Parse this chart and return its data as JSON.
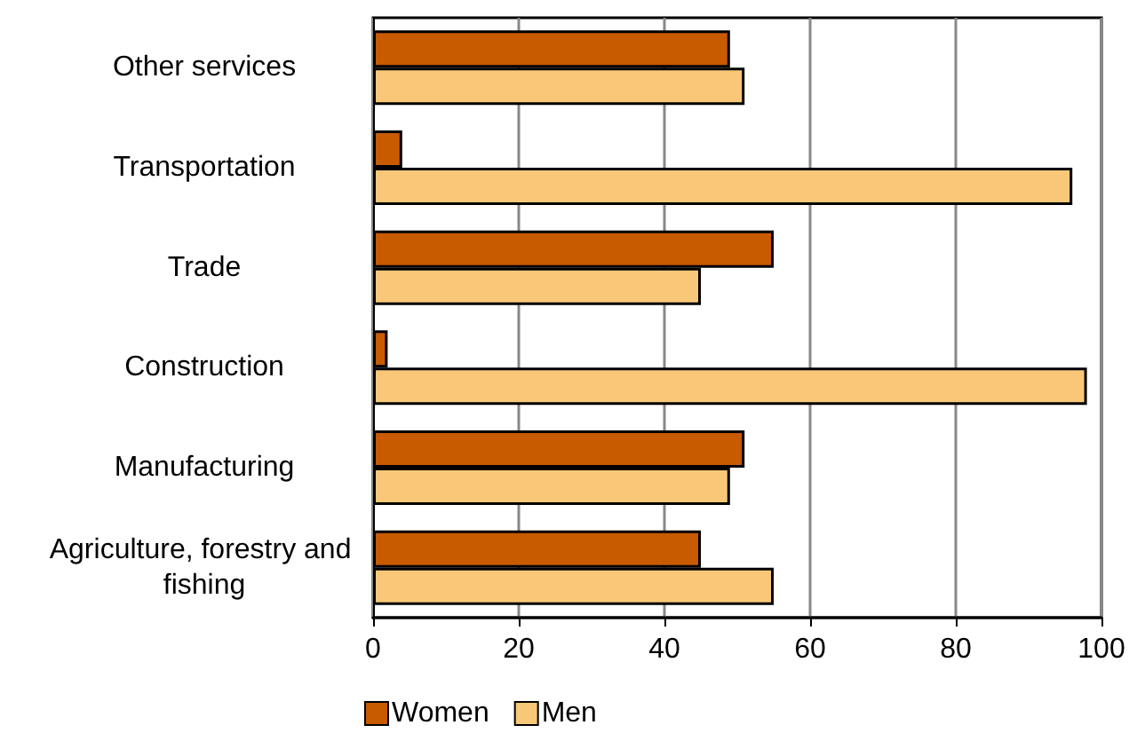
{
  "chart_data": {
    "type": "bar",
    "orientation": "horizontal",
    "categories": [
      "Other services",
      "Transportation",
      "Trade",
      "Construction",
      "Manufacturing",
      "Agriculture, forestry and fishing"
    ],
    "series": [
      {
        "name": "Women",
        "color": "#c85a00",
        "values": [
          49,
          4,
          55,
          2,
          51,
          45
        ]
      },
      {
        "name": "Men",
        "color": "#f8c878",
        "values": [
          51,
          96,
          45,
          98,
          49,
          55
        ]
      }
    ],
    "xlim": [
      0,
      100
    ],
    "xticks": [
      0,
      20,
      40,
      60,
      80,
      100
    ],
    "grid": "x",
    "legend": "bottom"
  }
}
